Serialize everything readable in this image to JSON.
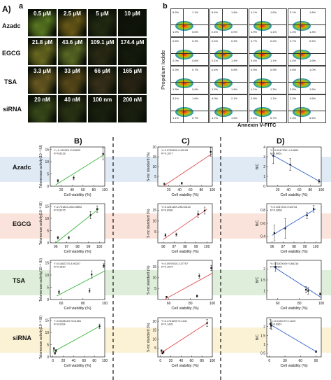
{
  "panel_labels": {
    "A": "A)",
    "a": "a",
    "b": "b",
    "B": "B)",
    "C": "C)",
    "D": "D)"
  },
  "treatments": [
    "Azadc",
    "EGCG",
    "TSA",
    "siRNA"
  ],
  "micrographs": {
    "concentrations": [
      [
        "0.5 μM",
        "2.5 μM",
        "5 μM",
        "10 μM"
      ],
      [
        "21.8 μM",
        "43.6 μM",
        "109.1 μM",
        "174.4 μM"
      ],
      [
        "3.3 μM",
        "33 μM",
        "66 μM",
        "165 μM"
      ],
      [
        "20 nM",
        "40 nM",
        "100 nm",
        "200 nM"
      ]
    ]
  },
  "flow": {
    "ylabel": "Propidium Iodide",
    "xlabel": "Annexin V-FITC",
    "quadrant_values": [
      [
        [
          "8.5%",
          "1.1%",
          "1.9%",
          "0.6%"
        ],
        [
          "8.4%",
          "1.8%",
          "2.4%",
          "0.9%"
        ],
        [
          "4.1%",
          "1.6%",
          "1.9%",
          "1.1%"
        ],
        [
          "3.1%",
          "1.8%",
          "1.4%",
          "1.3%"
        ]
      ],
      [
        [
          "0.8%",
          "0.3%",
          "2.0%",
          "0.6%"
        ],
        [
          "0.4%",
          "0.3%",
          "2.1%",
          "1.4%"
        ],
        [
          "0.7%",
          "0.2%",
          "3.4%",
          "1.1%"
        ],
        [
          "0.7%",
          "0.2%",
          "3.4%",
          "1.6%"
        ]
      ],
      [
        [
          "0.3%",
          "0.7%",
          "1.3%",
          "0.6%"
        ],
        [
          "0.4%",
          "0.8%",
          "1.2%",
          "1.8%"
        ],
        [
          "0.5%",
          "0.9%",
          "1.1%",
          "1.3%"
        ],
        [
          "0.6%",
          "1.0%",
          "2.5%",
          "1.5%"
        ]
      ],
      [
        [
          "3.1%",
          "1.6%",
          "1.1%",
          "0.7%"
        ],
        [
          "4.0%",
          "2.1%",
          "1.7%",
          "1.5%"
        ],
        [
          "2.5%",
          "1.1%",
          "2.4%",
          "6.7%"
        ],
        [
          "2.2%",
          "1.6%",
          "2.0%",
          "5.5%"
        ]
      ]
    ]
  },
  "colors": {
    "band_azadc": "#dce8f4",
    "band_egcg": "#f9e0d6",
    "band_tsa": "#dcecd6",
    "band_sirna": "#fbf0cf",
    "fit_green": "#3cb43c",
    "fit_red": "#e05050",
    "fit_blue": "#3060c8"
  },
  "chart_data": [
    {
      "type": "scatter",
      "panel": "B",
      "row": "Azadc",
      "x": [
        14,
        43,
        97
      ],
      "y": [
        2.2,
        3.4,
        13.2
      ],
      "yerr": [
        0.5,
        0.8,
        2.5
      ],
      "fit": [
        10,
        99
      ],
      "fit_color": "green",
      "equation": "Y=-0.12632X+0.52625",
      "r2": "R=0.8218",
      "xlabel": "Cell viability (%)",
      "ylabel": "Telomerase activity(10⁻³ IU)",
      "xlim": [
        0,
        100
      ],
      "ylim": [
        0,
        16
      ],
      "xticks": [
        20,
        40,
        60,
        80,
        100
      ],
      "yticks": [
        0,
        5,
        10,
        15
      ]
    },
    {
      "type": "scatter",
      "panel": "C",
      "row": "Azadc",
      "x": [
        12,
        44,
        97
      ],
      "y": [
        1.2,
        1.5,
        17.5
      ],
      "yerr": [
        0.3,
        0.5,
        2.2
      ],
      "fit": [
        10,
        99
      ],
      "fit_color": "red",
      "equation": "Y=0.079083X-0.63195",
      "r2": "R=0.1677",
      "xlabel": "Cell viability (%)",
      "ylabel": "5-mc standard (%)",
      "xlim": [
        0,
        100
      ],
      "ylim": [
        0,
        20
      ],
      "xticks": [
        20,
        40,
        60,
        80,
        100
      ],
      "yticks": [
        5,
        10,
        15,
        20
      ]
    },
    {
      "type": "scatter",
      "panel": "D",
      "row": "Azadc",
      "x": [
        12,
        43,
        96
      ],
      "y": [
        3.1,
        2.2,
        0.5
      ],
      "yerr": [
        0.8,
        0.6,
        0.2
      ],
      "fit": [
        8,
        99
      ],
      "fit_color": "blue",
      "equation": "Y=-0.034733X+4.14863",
      "r2": "R=0.8851",
      "xlabel": "Cell viability (%)",
      "ylabel": "B/C",
      "xlim": [
        0,
        100
      ],
      "ylim": [
        0,
        4
      ],
      "xticks": [
        20,
        40,
        60,
        80,
        100
      ],
      "yticks": [
        0,
        1,
        2,
        3,
        4
      ]
    },
    {
      "type": "scatter",
      "panel": "B",
      "row": "EGCG",
      "x": [
        96.2,
        97.2,
        99.2,
        99.8
      ],
      "y": [
        2.1,
        2.1,
        11.3,
        13.8
      ],
      "yerr": [
        0.6,
        0.6,
        1.5,
        1.3
      ],
      "fit": [
        96,
        100
      ],
      "fit_color": "green",
      "equation": "Y=2.70184X-256.03892",
      "r2": "R=0.6975",
      "xlabel": "Cell viability (%)",
      "ylabel": "Telomerase activity(10⁻³ IU)",
      "xlim": [
        95.5,
        100.5
      ],
      "ylim": [
        0,
        16
      ],
      "xticks": [
        96,
        97,
        98,
        99,
        100
      ],
      "yticks": [
        0,
        5,
        10,
        15
      ]
    },
    {
      "type": "scatter",
      "panel": "C",
      "row": "EGCG",
      "x": [
        96.2,
        97.2,
        99.2,
        99.8
      ],
      "y": [
        3.5,
        3.8,
        13.2,
        14.8
      ],
      "yerr": [
        0.7,
        0.7,
        1.5,
        1.6
      ],
      "fit": [
        96,
        100
      ],
      "fit_color": "red",
      "equation": "Y=3.125115X-296.63122",
      "r2": "R=0.8080",
      "xlabel": "Cell viability (%)",
      "ylabel": "5-mc standard (%)",
      "xlim": [
        95.5,
        100.5
      ],
      "ylim": [
        0,
        18
      ],
      "xticks": [
        96,
        97,
        98,
        99,
        100
      ],
      "yticks": [
        5,
        10,
        15
      ]
    },
    {
      "type": "scatter",
      "panel": "D",
      "row": "EGCG",
      "x": [
        96.2,
        97.2,
        99.2,
        99.8
      ],
      "y": [
        0.45,
        0.52,
        0.72,
        0.82
      ],
      "yerr": [
        0.12,
        0.15,
        0.05,
        0.05
      ],
      "fit": [
        96,
        100
      ],
      "fit_color": "blue",
      "equation": "Y=0.103723X-9.54744",
      "r2": "R=0.9868",
      "xlabel": "Cell viability (%)",
      "ylabel": "B/C",
      "xlim": [
        95.5,
        100.5
      ],
      "ylim": [
        0.3,
        0.9
      ],
      "xticks": [
        96,
        97,
        98,
        99,
        100
      ],
      "yticks": [
        0.4,
        0.6,
        0.8
      ]
    },
    {
      "type": "scatter",
      "panel": "B",
      "row": "TSA",
      "x": [
        58,
        86,
        88,
        99
      ],
      "y": [
        3.1,
        3.6,
        10.2,
        13.8
      ],
      "yerr": [
        0.7,
        0.8,
        1.5,
        0.8
      ],
      "fit": [
        56,
        100
      ],
      "fit_color": "green",
      "equation": "Y=0.168227X-8.90207",
      "r2": "R=0.1830",
      "xlabel": "Cell viability (%)",
      "ylabel": "Telomerase activity(10⁻³ IU)",
      "xlim": [
        50,
        100
      ],
      "ylim": [
        0,
        16
      ],
      "xticks": [
        60,
        80,
        100
      ],
      "yticks": [
        0,
        5,
        10,
        15
      ]
    },
    {
      "type": "scatter",
      "panel": "C",
      "row": "TSA",
      "x": [
        58,
        86,
        88,
        99
      ],
      "y": [
        1.2,
        1.6,
        10.8,
        14.5
      ],
      "yerr": [
        0.3,
        0.5,
        1.0,
        1.2
      ],
      "fit": [
        56,
        100
      ],
      "fit_color": "red",
      "equation": "Y=0.097093X-3.37797",
      "r2": "R=0.1579",
      "xlabel": "Cell viability (%)",
      "ylabel": "5-mc standard (%)",
      "xlim": [
        50,
        100
      ],
      "ylim": [
        0,
        18
      ],
      "xticks": [
        60,
        80,
        100
      ],
      "yticks": [
        5,
        10,
        15
      ]
    },
    {
      "type": "scatter",
      "panel": "D",
      "row": "TSA",
      "x": [
        58,
        86,
        88,
        99
      ],
      "y": [
        2.1,
        1.05,
        1.0,
        0.85
      ],
      "yerr": [
        0.2,
        0.15,
        0.15,
        0.05
      ],
      "fit": [
        56,
        100
      ],
      "fit_color": "blue",
      "equation": "Y=-0.030004X+3.66216",
      "r2": "R=0.9666",
      "xlabel": "Cell viability (%)",
      "ylabel": "B/C",
      "xlim": [
        50,
        100
      ],
      "ylim": [
        0.6,
        2.4
      ],
      "xticks": [
        60,
        80,
        100
      ],
      "yticks": [
        1.0,
        1.5,
        2.0
      ]
    },
    {
      "type": "scatter",
      "panel": "B",
      "row": "siRNA",
      "x": [
        2,
        4,
        6,
        90
      ],
      "y": [
        3.3,
        1.5,
        2.5,
        12.5
      ],
      "yerr": [
        0.6,
        0.4,
        0.5,
        0.9
      ],
      "fit": [
        0,
        92
      ],
      "fit_color": "green",
      "equation": "Y=0.002844X+6.01661",
      "r2": "R=0.0054",
      "xlabel": "Cell viability (%)",
      "ylabel": "Telomerase activity(10⁻³ IU)",
      "xlim": [
        -5,
        100
      ],
      "ylim": [
        0,
        16
      ],
      "xticks": [
        0,
        20,
        40,
        60,
        80,
        100
      ],
      "yticks": [
        0,
        5,
        10,
        15
      ]
    },
    {
      "type": "scatter",
      "panel": "C",
      "row": "siRNA",
      "x": [
        2,
        4,
        6,
        90
      ],
      "y": [
        3.5,
        2.0,
        2.8,
        19.0
      ],
      "yerr": [
        0.5,
        0.4,
        0.5,
        2.0
      ],
      "fit": [
        0,
        92
      ],
      "fit_color": "red",
      "equation": "Y=0.174169X+2.1134",
      "r2": "R=0.1435",
      "xlabel": "Cell viability (%)",
      "ylabel": "5-mc standard (%)",
      "xlim": [
        -5,
        100
      ],
      "ylim": [
        0,
        22
      ],
      "xticks": [
        0,
        20,
        40,
        60,
        80,
        100
      ],
      "yticks": [
        5,
        10,
        15,
        20
      ]
    },
    {
      "type": "scatter",
      "panel": "D",
      "row": "siRNA",
      "x": [
        2,
        4,
        90
      ],
      "y": [
        2.15,
        2.05,
        0.6
      ],
      "yerr": [
        0.25,
        0.2,
        0.05
      ],
      "fit": [
        0,
        92
      ],
      "fit_color": "blue",
      "equation": "Y=-0.01637X+2.1223",
      "r2": "R=0.9867",
      "xlabel": "Cell viability (%)",
      "ylabel": "B/C",
      "xlim": [
        -5,
        100
      ],
      "ylim": [
        0.3,
        2.5
      ],
      "xticks": [
        0,
        30,
        60,
        90
      ],
      "yticks": [
        0.5,
        1.0,
        1.5,
        2.0
      ]
    }
  ]
}
